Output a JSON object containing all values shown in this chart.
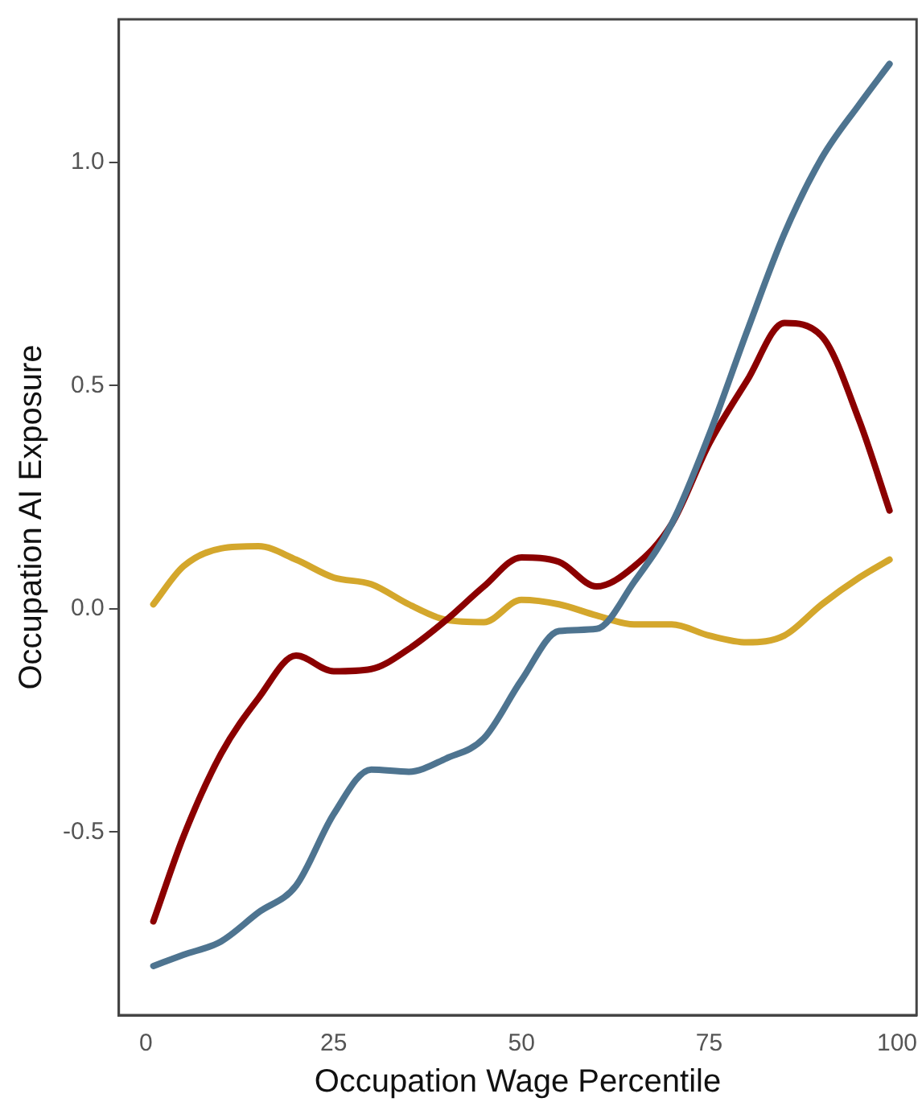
{
  "chart_data": {
    "type": "line",
    "xlabel": "Occupation Wage Percentile",
    "ylabel": "Occupation AI Exposure",
    "xlim": [
      -3.6,
      102.6
    ],
    "ylim": [
      -0.91,
      1.32
    ],
    "xticks": [
      0,
      25,
      50,
      75,
      100
    ],
    "yticks": [
      {
        "value": -0.5,
        "label": "-0.5"
      },
      {
        "value": 0,
        "label": "0.0"
      },
      {
        "value": 0.5,
        "label": "0.5"
      },
      {
        "value": 1,
        "label": "1.0"
      }
    ],
    "grid": false,
    "legend": false,
    "marker": "none",
    "line_style": "solid",
    "x": [
      1,
      5,
      10,
      15,
      20,
      25,
      30,
      35,
      40,
      45,
      50,
      55,
      60,
      65,
      70,
      75,
      80,
      85,
      90,
      95,
      99
    ],
    "series": [
      {
        "color": "#4e7490",
        "values": [
          -0.8,
          -0.775,
          -0.745,
          -0.68,
          -0.62,
          -0.46,
          -0.36,
          -0.365,
          -0.335,
          -0.29,
          -0.16,
          -0.05,
          -0.045,
          0.06,
          0.19,
          0.39,
          0.62,
          0.84,
          1.01,
          1.13,
          1.22
        ]
      },
      {
        "color": "#8b0000",
        "values": [
          -0.7,
          -0.51,
          -0.325,
          -0.2,
          -0.105,
          -0.14,
          -0.135,
          -0.09,
          -0.025,
          0.05,
          0.115,
          0.105,
          0.05,
          0.095,
          0.19,
          0.37,
          0.51,
          0.64,
          0.61,
          0.42,
          0.22
        ]
      },
      {
        "color": "#d4a72c",
        "values": [
          0.01,
          0.095,
          0.135,
          0.14,
          0.11,
          0.07,
          0.055,
          0.01,
          -0.025,
          -0.03,
          0.02,
          0.01,
          -0.015,
          -0.035,
          -0.035,
          -0.06,
          -0.075,
          -0.06,
          0.01,
          0.07,
          0.11
        ]
      }
    ]
  }
}
